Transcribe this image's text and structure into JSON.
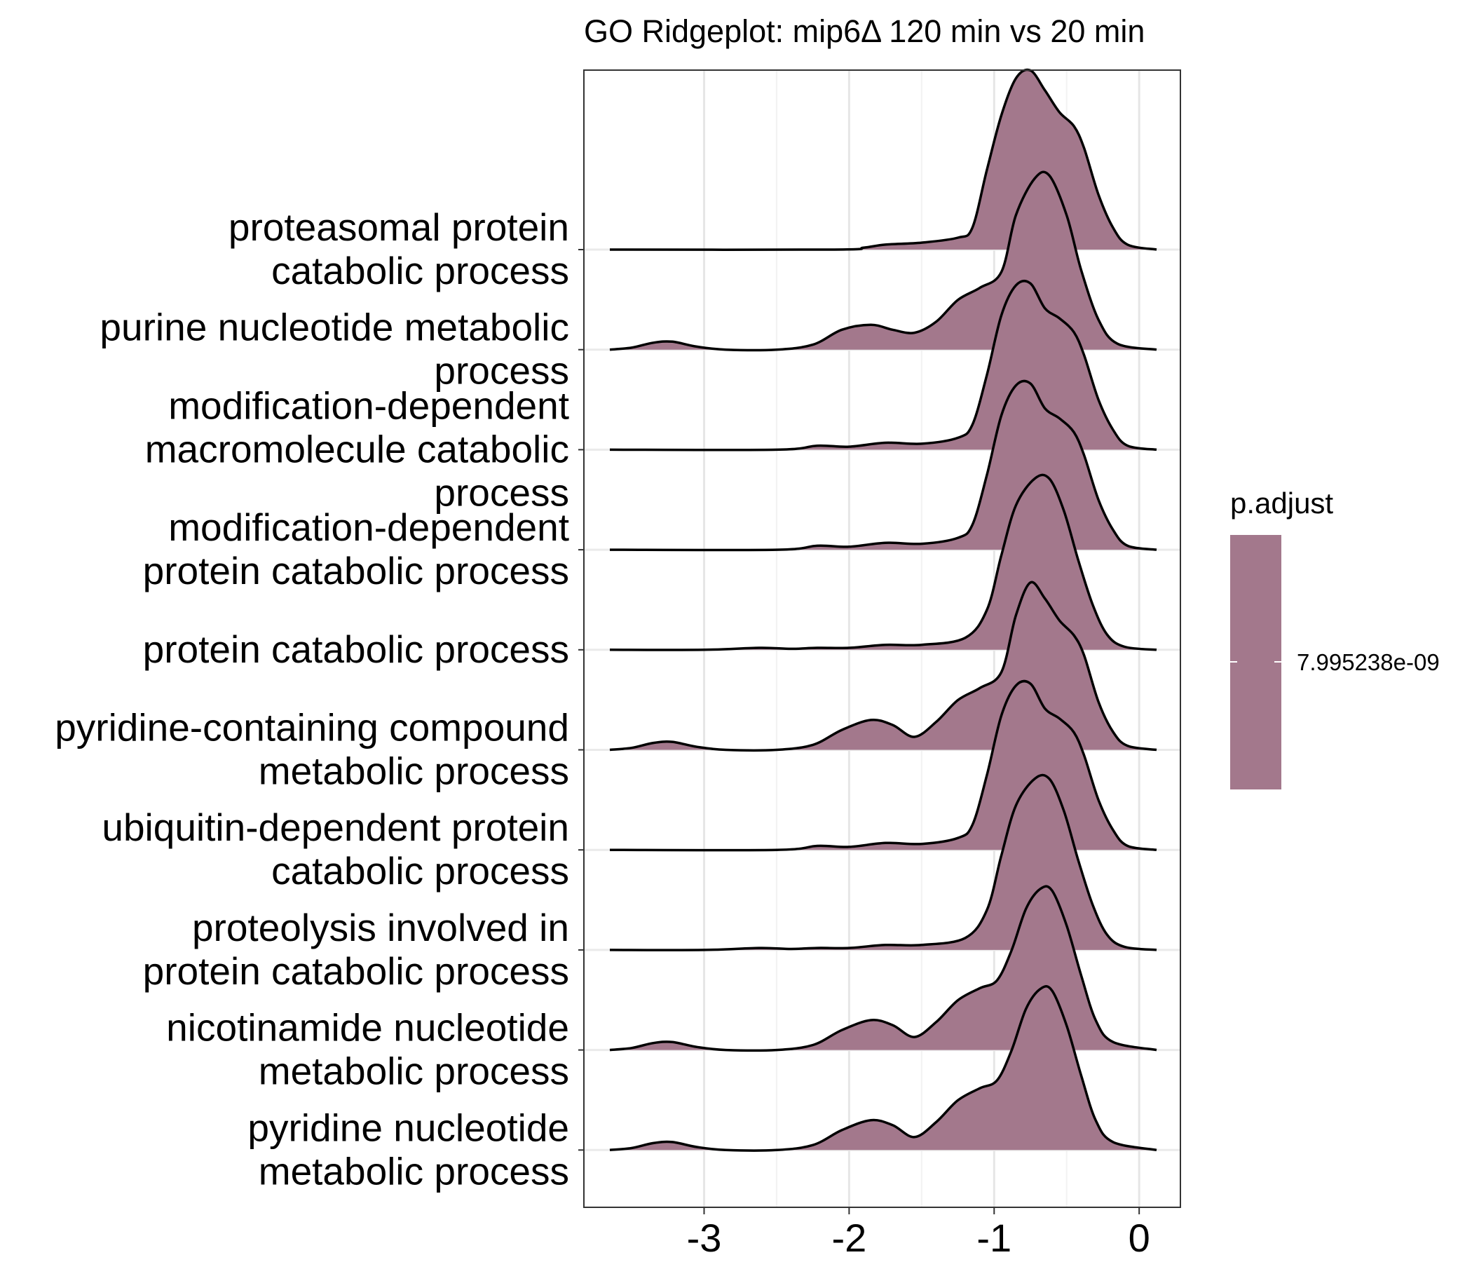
{
  "chart_data": {
    "type": "ridgeline",
    "title": "GO Ridgeplot: mip6Δ 120 min vs 20 min",
    "xlabel": "",
    "ylabel": "",
    "xlim": [
      -3.65,
      0.12
    ],
    "xticks": [
      -3,
      -2,
      -1,
      0
    ],
    "xtick_labels": [
      "-3",
      "-2",
      "-1",
      "0"
    ],
    "grid": true,
    "fill_color": "#a3788c",
    "legend": {
      "title": "p.adjust",
      "label": "7.995238e-09",
      "position": "right"
    },
    "series": [
      {
        "name": "proteasomal protein catabolic process",
        "label_lines": [
          "proteasomal protein",
          "catabolic process"
        ],
        "density": [
          [
            -3.65,
            0
          ],
          [
            -2.1,
            0
          ],
          [
            -1.9,
            0.02
          ],
          [
            -1.75,
            0.05
          ],
          [
            -1.5,
            0.07
          ],
          [
            -1.25,
            0.12
          ],
          [
            -1.15,
            0.22
          ],
          [
            -1.05,
            0.8
          ],
          [
            -0.95,
            1.35
          ],
          [
            -0.85,
            1.72
          ],
          [
            -0.75,
            1.8
          ],
          [
            -0.65,
            1.6
          ],
          [
            -0.55,
            1.38
          ],
          [
            -0.45,
            1.24
          ],
          [
            -0.38,
            1.02
          ],
          [
            -0.28,
            0.55
          ],
          [
            -0.18,
            0.22
          ],
          [
            -0.08,
            0.05
          ],
          [
            0.12,
            0
          ]
        ]
      },
      {
        "name": "purine nucleotide metabolic process",
        "label_lines": [
          "purine nucleotide metabolic",
          "process"
        ],
        "density": [
          [
            -3.65,
            0
          ],
          [
            -3.5,
            0.02
          ],
          [
            -3.35,
            0.07
          ],
          [
            -3.22,
            0.08
          ],
          [
            -3.05,
            0.03
          ],
          [
            -2.85,
            0
          ],
          [
            -2.5,
            0
          ],
          [
            -2.25,
            0.05
          ],
          [
            -2.05,
            0.2
          ],
          [
            -1.85,
            0.25
          ],
          [
            -1.7,
            0.2
          ],
          [
            -1.55,
            0.17
          ],
          [
            -1.4,
            0.28
          ],
          [
            -1.25,
            0.5
          ],
          [
            -1.1,
            0.62
          ],
          [
            -0.95,
            0.78
          ],
          [
            -0.85,
            1.35
          ],
          [
            -0.72,
            1.72
          ],
          [
            -0.62,
            1.75
          ],
          [
            -0.5,
            1.35
          ],
          [
            -0.4,
            0.8
          ],
          [
            -0.28,
            0.3
          ],
          [
            -0.15,
            0.06
          ],
          [
            0.12,
            0
          ]
        ]
      },
      {
        "name": "modification-dependent macromolecule catabolic process",
        "label_lines": [
          "modification-dependent",
          "macromolecule catabolic",
          "process"
        ],
        "density": [
          [
            -3.65,
            0
          ],
          [
            -2.5,
            0
          ],
          [
            -2.22,
            0.04
          ],
          [
            -2.0,
            0.03
          ],
          [
            -1.75,
            0.07
          ],
          [
            -1.5,
            0.06
          ],
          [
            -1.25,
            0.12
          ],
          [
            -1.15,
            0.25
          ],
          [
            -1.05,
            0.75
          ],
          [
            -0.95,
            1.35
          ],
          [
            -0.85,
            1.65
          ],
          [
            -0.75,
            1.67
          ],
          [
            -0.65,
            1.42
          ],
          [
            -0.55,
            1.32
          ],
          [
            -0.45,
            1.18
          ],
          [
            -0.38,
            0.95
          ],
          [
            -0.28,
            0.5
          ],
          [
            -0.18,
            0.2
          ],
          [
            -0.08,
            0.04
          ],
          [
            0.12,
            0
          ]
        ]
      },
      {
        "name": "modification-dependent protein catabolic process",
        "label_lines": [
          "modification-dependent",
          "protein catabolic process"
        ],
        "density": [
          [
            -3.65,
            0
          ],
          [
            -2.5,
            0
          ],
          [
            -2.22,
            0.04
          ],
          [
            -2.0,
            0.03
          ],
          [
            -1.75,
            0.07
          ],
          [
            -1.5,
            0.06
          ],
          [
            -1.25,
            0.12
          ],
          [
            -1.15,
            0.25
          ],
          [
            -1.05,
            0.75
          ],
          [
            -0.95,
            1.35
          ],
          [
            -0.85,
            1.65
          ],
          [
            -0.75,
            1.67
          ],
          [
            -0.65,
            1.42
          ],
          [
            -0.55,
            1.32
          ],
          [
            -0.45,
            1.18
          ],
          [
            -0.38,
            0.95
          ],
          [
            -0.28,
            0.5
          ],
          [
            -0.18,
            0.2
          ],
          [
            -0.08,
            0.04
          ],
          [
            0.12,
            0
          ]
        ]
      },
      {
        "name": "protein catabolic process",
        "label_lines": [
          "protein catabolic process"
        ],
        "density": [
          [
            -3.65,
            0
          ],
          [
            -3.0,
            0
          ],
          [
            -2.62,
            0.02
          ],
          [
            -2.4,
            0.01
          ],
          [
            -2.22,
            0.02
          ],
          [
            -2.0,
            0.02
          ],
          [
            -1.75,
            0.05
          ],
          [
            -1.5,
            0.05
          ],
          [
            -1.2,
            0.12
          ],
          [
            -1.05,
            0.4
          ],
          [
            -0.95,
            0.95
          ],
          [
            -0.85,
            1.45
          ],
          [
            -0.72,
            1.72
          ],
          [
            -0.62,
            1.72
          ],
          [
            -0.52,
            1.4
          ],
          [
            -0.42,
            0.9
          ],
          [
            -0.32,
            0.45
          ],
          [
            -0.22,
            0.15
          ],
          [
            -0.1,
            0.03
          ],
          [
            0.12,
            0
          ]
        ]
      },
      {
        "name": "pyridine-containing compound metabolic process",
        "label_lines": [
          "pyridine-containing compound",
          "metabolic process"
        ],
        "density": [
          [
            -3.65,
            0
          ],
          [
            -3.5,
            0.02
          ],
          [
            -3.35,
            0.07
          ],
          [
            -3.22,
            0.08
          ],
          [
            -3.05,
            0.03
          ],
          [
            -2.85,
            0
          ],
          [
            -2.5,
            0
          ],
          [
            -2.25,
            0.05
          ],
          [
            -2.05,
            0.2
          ],
          [
            -1.85,
            0.3
          ],
          [
            -1.7,
            0.25
          ],
          [
            -1.55,
            0.13
          ],
          [
            -1.4,
            0.28
          ],
          [
            -1.25,
            0.5
          ],
          [
            -1.1,
            0.62
          ],
          [
            -0.95,
            0.78
          ],
          [
            -0.85,
            1.35
          ],
          [
            -0.75,
            1.68
          ],
          [
            -0.65,
            1.52
          ],
          [
            -0.55,
            1.3
          ],
          [
            -0.45,
            1.15
          ],
          [
            -0.38,
            0.95
          ],
          [
            -0.28,
            0.48
          ],
          [
            -0.18,
            0.18
          ],
          [
            -0.08,
            0.04
          ],
          [
            0.12,
            0
          ]
        ]
      },
      {
        "name": "ubiquitin-dependent protein catabolic process",
        "label_lines": [
          "ubiquitin-dependent protein",
          "catabolic process"
        ],
        "density": [
          [
            -3.65,
            0
          ],
          [
            -2.5,
            0
          ],
          [
            -2.22,
            0.04
          ],
          [
            -2.0,
            0.03
          ],
          [
            -1.75,
            0.07
          ],
          [
            -1.5,
            0.06
          ],
          [
            -1.25,
            0.12
          ],
          [
            -1.15,
            0.25
          ],
          [
            -1.05,
            0.75
          ],
          [
            -0.95,
            1.35
          ],
          [
            -0.85,
            1.65
          ],
          [
            -0.75,
            1.67
          ],
          [
            -0.65,
            1.42
          ],
          [
            -0.55,
            1.32
          ],
          [
            -0.45,
            1.18
          ],
          [
            -0.38,
            0.95
          ],
          [
            -0.28,
            0.5
          ],
          [
            -0.18,
            0.2
          ],
          [
            -0.08,
            0.04
          ],
          [
            0.12,
            0
          ]
        ]
      },
      {
        "name": "proteolysis involved in protein catabolic process",
        "label_lines": [
          "proteolysis involved in",
          "protein catabolic process"
        ],
        "density": [
          [
            -3.65,
            0
          ],
          [
            -3.0,
            0
          ],
          [
            -2.62,
            0.02
          ],
          [
            -2.4,
            0.01
          ],
          [
            -2.22,
            0.02
          ],
          [
            -2.0,
            0.02
          ],
          [
            -1.75,
            0.05
          ],
          [
            -1.5,
            0.05
          ],
          [
            -1.2,
            0.12
          ],
          [
            -1.05,
            0.4
          ],
          [
            -0.95,
            0.95
          ],
          [
            -0.85,
            1.45
          ],
          [
            -0.72,
            1.72
          ],
          [
            -0.62,
            1.72
          ],
          [
            -0.52,
            1.4
          ],
          [
            -0.42,
            0.9
          ],
          [
            -0.32,
            0.45
          ],
          [
            -0.22,
            0.15
          ],
          [
            -0.1,
            0.03
          ],
          [
            0.12,
            0
          ]
        ]
      },
      {
        "name": "nicotinamide nucleotide metabolic process",
        "label_lines": [
          "nicotinamide nucleotide",
          "metabolic process"
        ],
        "density": [
          [
            -3.65,
            0
          ],
          [
            -3.5,
            0.02
          ],
          [
            -3.35,
            0.07
          ],
          [
            -3.22,
            0.08
          ],
          [
            -3.05,
            0.03
          ],
          [
            -2.85,
            0
          ],
          [
            -2.5,
            0
          ],
          [
            -2.25,
            0.05
          ],
          [
            -2.05,
            0.2
          ],
          [
            -1.85,
            0.3
          ],
          [
            -1.7,
            0.25
          ],
          [
            -1.55,
            0.13
          ],
          [
            -1.4,
            0.28
          ],
          [
            -1.25,
            0.5
          ],
          [
            -1.1,
            0.62
          ],
          [
            -0.98,
            0.7
          ],
          [
            -0.88,
            1.0
          ],
          [
            -0.78,
            1.42
          ],
          [
            -0.68,
            1.62
          ],
          [
            -0.6,
            1.6
          ],
          [
            -0.5,
            1.25
          ],
          [
            -0.4,
            0.75
          ],
          [
            -0.3,
            0.3
          ],
          [
            -0.18,
            0.08
          ],
          [
            0.12,
            0
          ]
        ]
      },
      {
        "name": "pyridine nucleotide metabolic process",
        "label_lines": [
          "pyridine nucleotide",
          "metabolic process"
        ],
        "density": [
          [
            -3.65,
            0
          ],
          [
            -3.5,
            0.02
          ],
          [
            -3.35,
            0.07
          ],
          [
            -3.22,
            0.08
          ],
          [
            -3.05,
            0.03
          ],
          [
            -2.85,
            0
          ],
          [
            -2.5,
            0
          ],
          [
            -2.25,
            0.05
          ],
          [
            -2.05,
            0.2
          ],
          [
            -1.85,
            0.3
          ],
          [
            -1.7,
            0.25
          ],
          [
            -1.55,
            0.13
          ],
          [
            -1.4,
            0.28
          ],
          [
            -1.25,
            0.5
          ],
          [
            -1.1,
            0.62
          ],
          [
            -0.98,
            0.7
          ],
          [
            -0.88,
            1.0
          ],
          [
            -0.78,
            1.42
          ],
          [
            -0.68,
            1.62
          ],
          [
            -0.6,
            1.6
          ],
          [
            -0.5,
            1.25
          ],
          [
            -0.4,
            0.75
          ],
          [
            -0.3,
            0.3
          ],
          [
            -0.18,
            0.08
          ],
          [
            0.12,
            0
          ]
        ]
      }
    ]
  }
}
